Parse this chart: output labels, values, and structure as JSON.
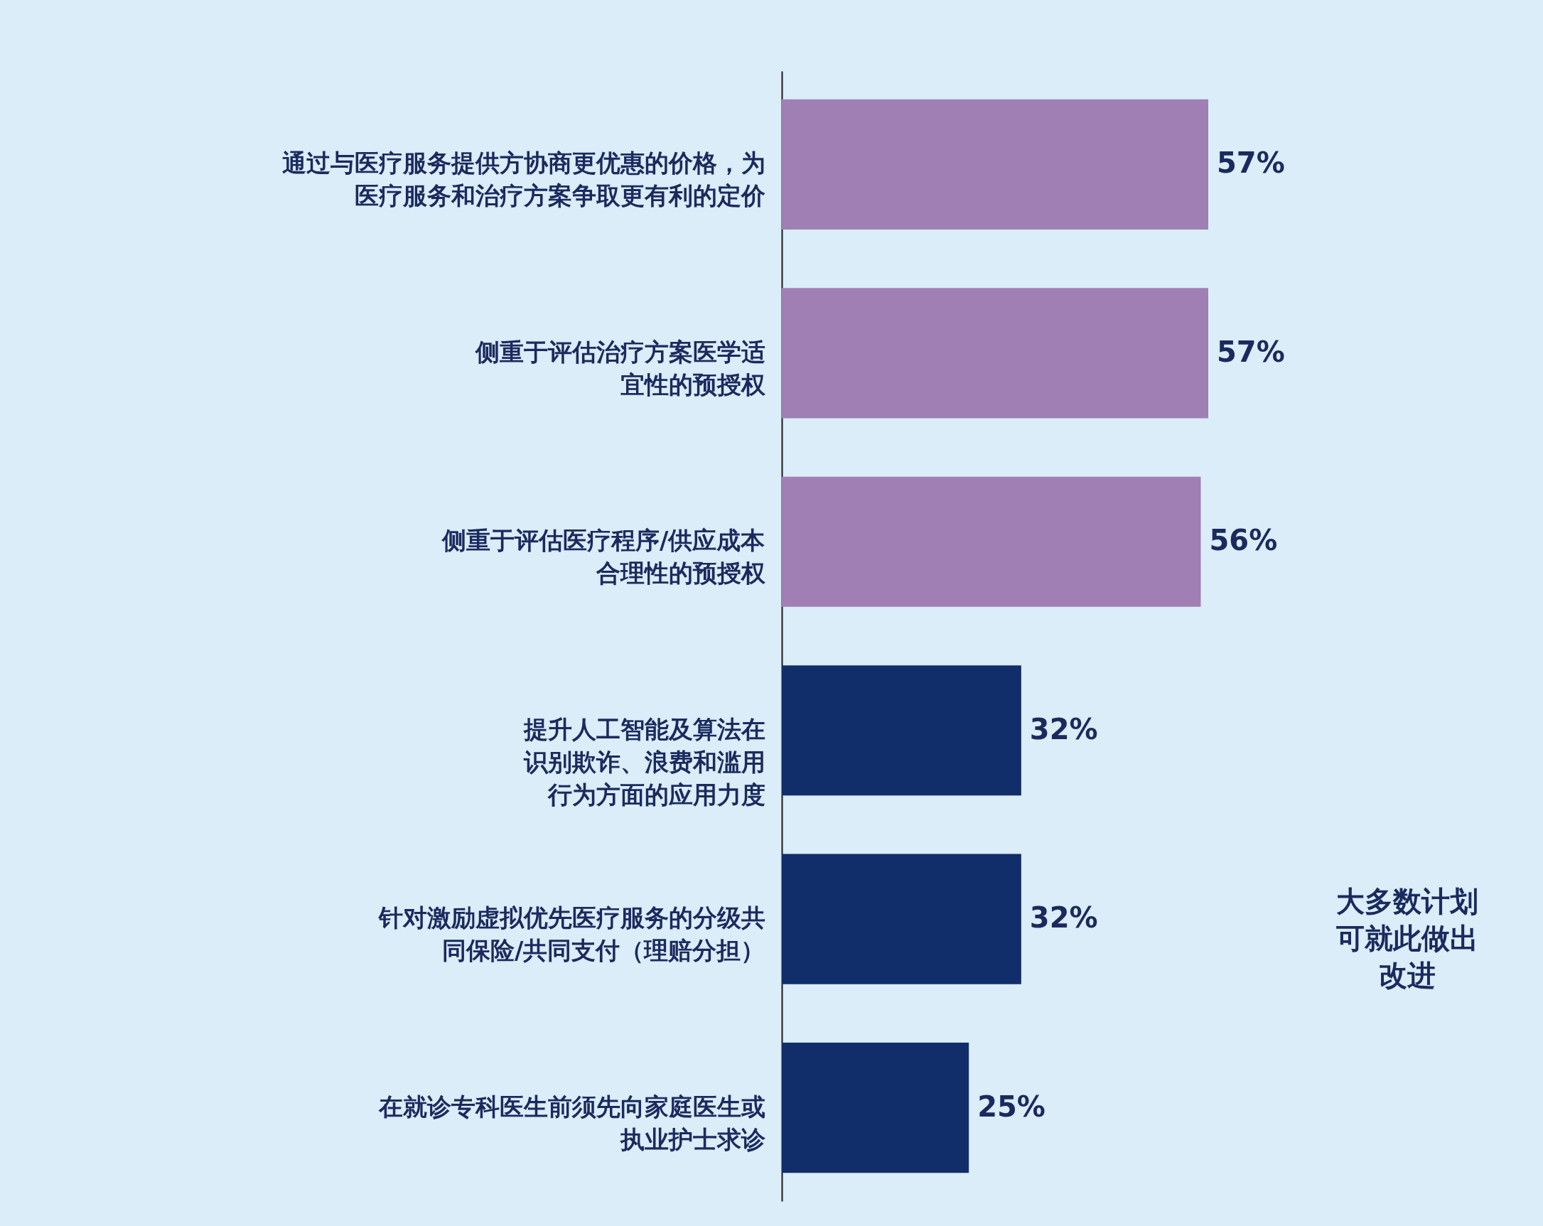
{
  "chart_data": {
    "type": "bar",
    "orientation": "horizontal",
    "categories": [
      "通过与医疗服务提供方协商更优惠的价格，为医疗服务和治疗方案争取更有利的定价",
      "侧重于评估治疗方案医学适宜性的预授权",
      "侧重于评估医疗程序/供应成本合理性的预授权",
      "提升人工智能及算法在识别欺诈、浪费和滥用行为方面的应用力度",
      "针对激励虚拟优先医疗服务的分级共同保险/共同支付（理赔分担）",
      "在就诊专科医生前须先向家庭医生或执业护士求诊"
    ],
    "values": [
      57,
      57,
      56,
      32,
      32,
      25
    ],
    "colors": [
      "#a07fb5",
      "#a07fb5",
      "#a07fb5",
      "#112d6a",
      "#112d6a",
      "#112d6a"
    ],
    "value_labels": [
      "57%",
      "57%",
      "56%",
      "32%",
      "32%",
      "25%"
    ],
    "tick_labels": "y",
    "annotations": [
      "大多数计划可就此做出改进"
    ]
  }
}
